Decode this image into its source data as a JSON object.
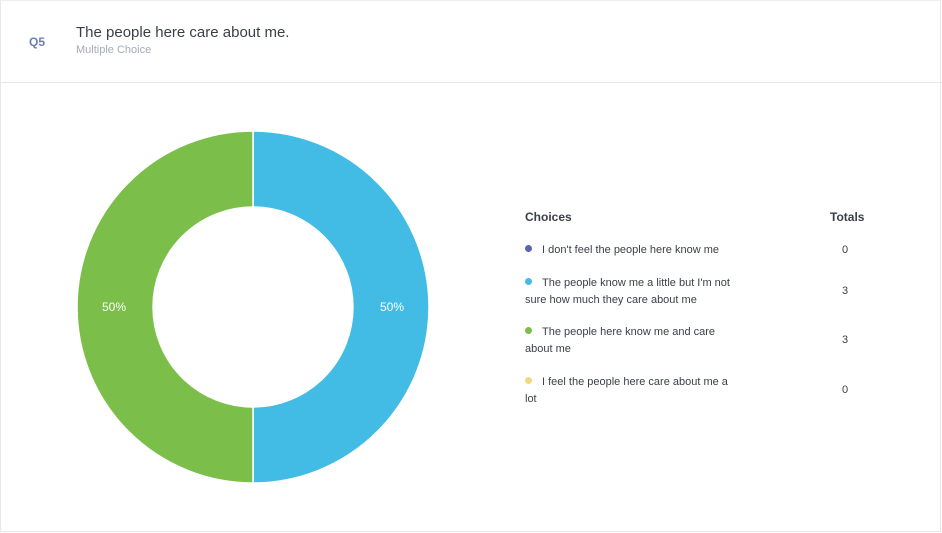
{
  "question": {
    "number": "Q5",
    "title": "The people here care about me.",
    "type": "Multiple Choice"
  },
  "legend": {
    "choices_header": "Choices",
    "totals_header": "Totals"
  },
  "chart_data": {
    "type": "pie",
    "donut": true,
    "categories": [
      "I don't feel the people here know me",
      "The people know me a little but I'm not sure how much they care about me",
      "The people here know me and care about me",
      "I feel the people here care about me a lot"
    ],
    "values": [
      0,
      3,
      3,
      0
    ],
    "slice_labels": [
      "",
      "50%",
      "50%",
      ""
    ],
    "colors": [
      "#5b64b0",
      "#42bce4",
      "#7bbf4a",
      "#f6d77f"
    ],
    "legend_position": "right"
  }
}
